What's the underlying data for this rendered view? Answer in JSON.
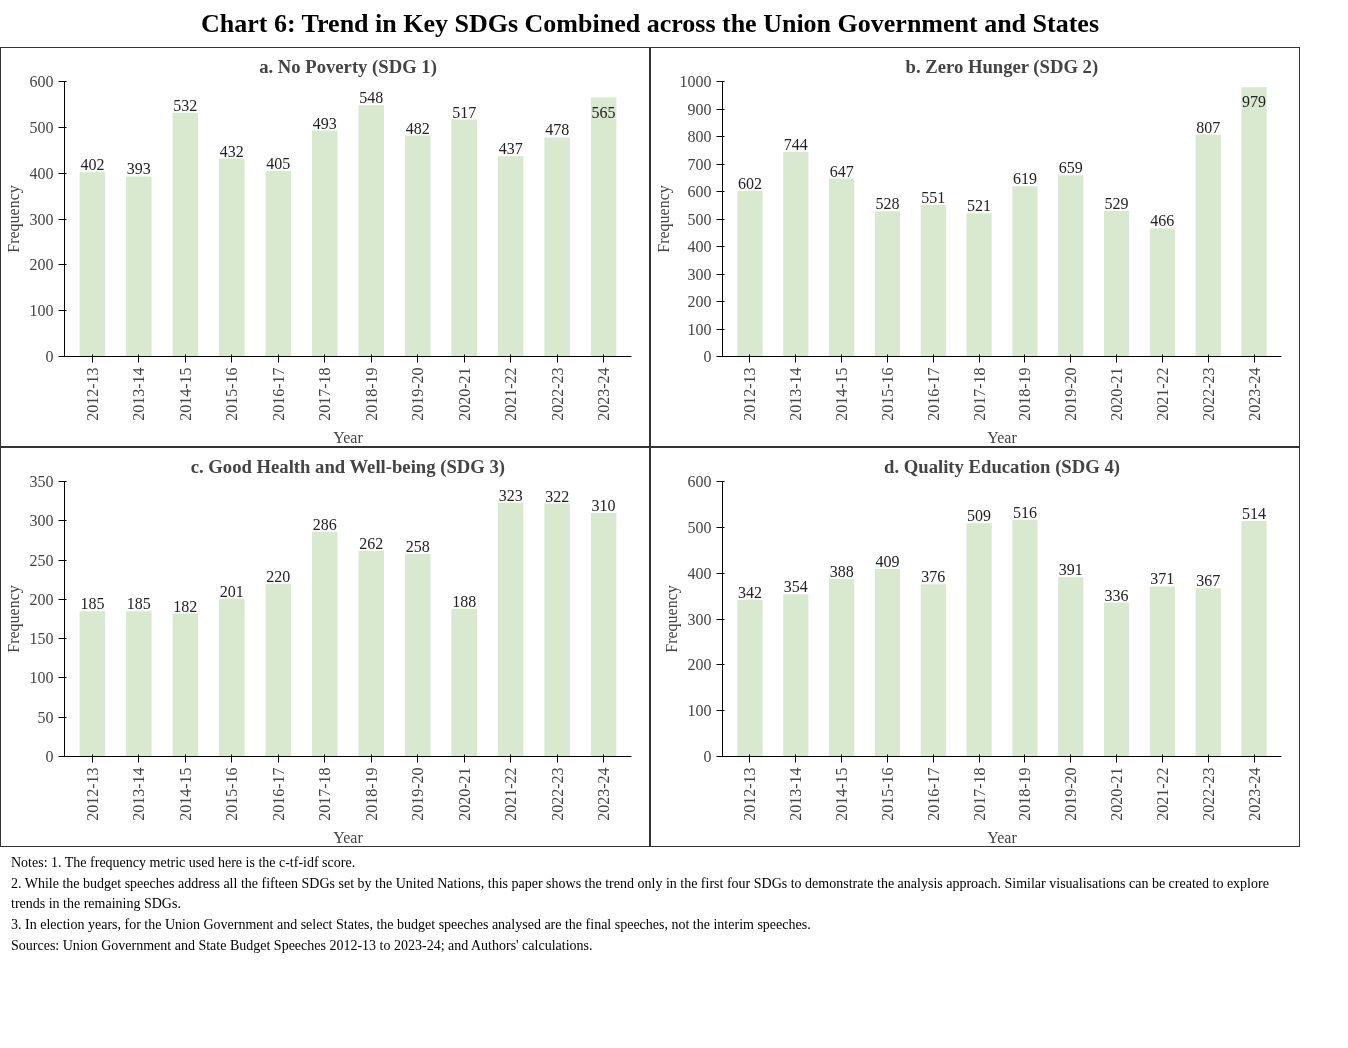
{
  "chart_data": [
    {
      "type": "other",
      "title": "Chart 6: Trend in Key SDGs Combined across the Union Government and States"
    },
    {
      "type": "bar",
      "title": "a. No Poverty (SDG 1)",
      "xlabel": "Year",
      "ylabel": "Frequency",
      "categories": [
        "2012-13",
        "2013-14",
        "2014-15",
        "2015-16",
        "2016-17",
        "2017-18",
        "2018-19",
        "2019-20",
        "2020-21",
        "2021-22",
        "2022-23",
        "2023-24"
      ],
      "values": [
        402,
        393,
        532,
        432,
        405,
        493,
        548,
        482,
        517,
        437,
        478,
        565
      ],
      "color": "#d8e9cf",
      "ylim": [
        0,
        600
      ],
      "yticks": [
        0,
        100,
        200,
        300,
        400,
        500,
        600
      ],
      "data_labels": true
    },
    {
      "type": "bar",
      "title": "b. Zero Hunger (SDG 2)",
      "xlabel": "Year",
      "ylabel": "Frequency",
      "categories": [
        "2012-13",
        "2013-14",
        "2014-15",
        "2015-16",
        "2016-17",
        "2017-18",
        "2018-19",
        "2019-20",
        "2020-21",
        "2021-22",
        "2022-23",
        "2023-24"
      ],
      "values": [
        602,
        744,
        647,
        528,
        551,
        521,
        619,
        659,
        529,
        466,
        807,
        979
      ],
      "color": "#d8e9cf",
      "ylim": [
        0,
        1000
      ],
      "yticks": [
        0,
        100,
        200,
        300,
        400,
        500,
        600,
        700,
        800,
        900,
        1000
      ],
      "data_labels": true
    },
    {
      "type": "bar",
      "title": "c. Good Health and Well-being (SDG 3)",
      "xlabel": "Year",
      "ylabel": "Frequency",
      "categories": [
        "2012-13",
        "2013-14",
        "2014-15",
        "2015-16",
        "2016-17",
        "2017-18",
        "2018-19",
        "2019-20",
        "2020-21",
        "2021-22",
        "2022-23",
        "2023-24"
      ],
      "values": [
        185,
        185,
        182,
        201,
        220,
        286,
        262,
        258,
        188,
        323,
        322,
        310
      ],
      "color": "#d8e9cf",
      "ylim": [
        0,
        350
      ],
      "yticks": [
        0,
        50,
        100,
        150,
        200,
        250,
        300,
        350
      ],
      "data_labels": true
    },
    {
      "type": "bar",
      "title": "d. Quality Education (SDG 4)",
      "xlabel": "Year",
      "ylabel": "Frequency",
      "categories": [
        "2012-13",
        "2013-14",
        "2014-15",
        "2015-16",
        "2016-17",
        "2017-18",
        "2018-19",
        "2019-20",
        "2020-21",
        "2021-22",
        "2022-23",
        "2023-24"
      ],
      "values": [
        342,
        354,
        388,
        409,
        376,
        509,
        516,
        391,
        336,
        371,
        367,
        514
      ],
      "color": "#d8e9cf",
      "ylim": [
        0,
        600
      ],
      "yticks": [
        0,
        100,
        200,
        300,
        400,
        500,
        600
      ],
      "data_labels": true
    },
    {
      "type": "other",
      "annotations": [
        "Notes: 1. The frequency metric used here is the c-tf-idf score.",
        "2. While the budget speeches address all the fifteen SDGs set by the United Nations, this paper shows the trend only in the first four SDGs to demonstrate the analysis approach. Similar visualisations can be created to explore trends in the remaining SDGs.",
        "3. In election years, for the Union Government and select States, the budget speeches analysed are the final speeches, not the interim speeches.",
        "Sources: Union Government and State Budget Speeches 2012-13 to 2023-24; and Authors' calculations."
      ]
    }
  ]
}
